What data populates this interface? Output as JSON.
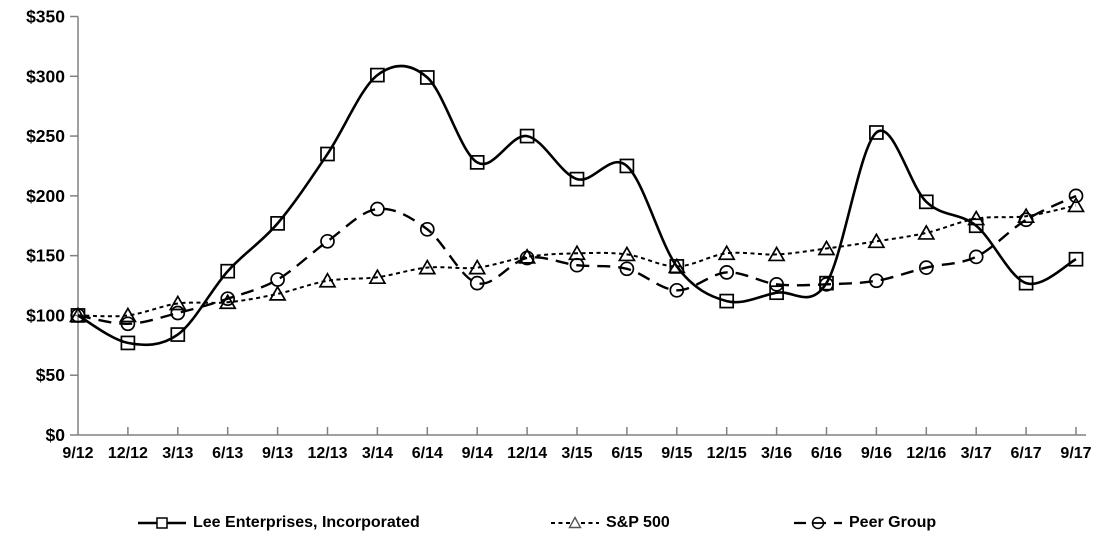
{
  "chart_data": {
    "type": "line",
    "title": "",
    "xlabel": "",
    "ylabel": "",
    "categories": [
      "9/12",
      "12/12",
      "3/13",
      "6/13",
      "9/13",
      "12/13",
      "3/14",
      "6/14",
      "9/14",
      "12/14",
      "3/15",
      "6/15",
      "9/15",
      "12/15",
      "3/16",
      "6/16",
      "9/16",
      "12/16",
      "3/17",
      "6/17",
      "9/17"
    ],
    "series": [
      {
        "name": "Lee Enterprises, Incorporated",
        "marker": "square",
        "line_style": "solid",
        "values": [
          100,
          77,
          84,
          137,
          177,
          235,
          301,
          299,
          228,
          250,
          214,
          225,
          141,
          112,
          119,
          127,
          253,
          195,
          175,
          127,
          147
        ]
      },
      {
        "name": "S&P 500",
        "marker": "triangle",
        "line_style": "dotted",
        "values": [
          100,
          100,
          110,
          111,
          118,
          129,
          132,
          140,
          140,
          149,
          152,
          151,
          141,
          152,
          151,
          156,
          162,
          169,
          181,
          183,
          192
        ]
      },
      {
        "name": "Peer Group",
        "marker": "circle",
        "line_style": "dashed",
        "values": [
          100,
          93,
          102,
          114,
          130,
          162,
          189,
          172,
          127,
          148,
          142,
          139,
          121,
          136,
          126,
          126,
          129,
          140,
          149,
          180,
          200
        ]
      }
    ],
    "ylim": [
      0,
      350
    ],
    "ytick_step": 50,
    "ytick_labels": [
      "$0",
      "$50",
      "$100",
      "$150",
      "$200",
      "$250",
      "$300",
      "$350"
    ],
    "grid": false,
    "legend_position": "bottom",
    "line_color": "#000000",
    "axis_color": "#808080",
    "background": "#ffffff",
    "curve": "smoothed"
  }
}
